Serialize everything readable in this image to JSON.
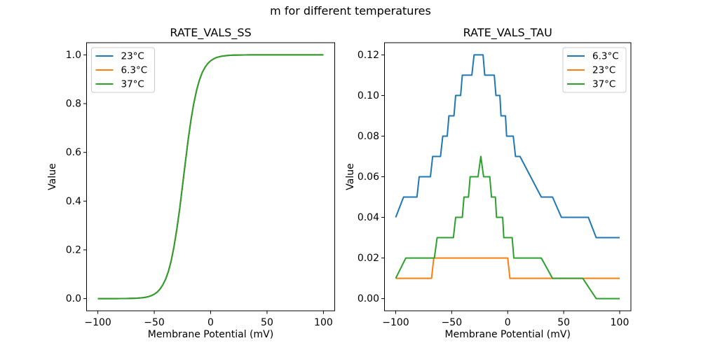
{
  "figure": {
    "suptitle": "m for different temperatures",
    "background": "#ffffff",
    "text_color": "#000000"
  },
  "palette": {
    "blue": "#1f77b4",
    "orange": "#ff7f0e",
    "green": "#2ca02c",
    "legend_border": "#cccccc",
    "axes_color": "#000000"
  },
  "chart_data": [
    {
      "type": "line",
      "title": "RATE_VALS_SS",
      "xlabel": "Membrane Potential (mV)",
      "ylabel": "Value",
      "xlim": [
        -100,
        100
      ],
      "ylim": [
        0,
        1
      ],
      "grid": false,
      "xticks": [
        {
          "v": -100,
          "label": "−100"
        },
        {
          "v": -50,
          "label": "−50"
        },
        {
          "v": 0,
          "label": "0"
        },
        {
          "v": 50,
          "label": "50"
        },
        {
          "v": 100,
          "label": "100"
        }
      ],
      "yticks": [
        {
          "v": 0.0,
          "label": "0.0"
        },
        {
          "v": 0.2,
          "label": "0.2"
        },
        {
          "v": 0.4,
          "label": "0.4"
        },
        {
          "v": 0.6,
          "label": "0.6"
        },
        {
          "v": 0.8,
          "label": "0.8"
        },
        {
          "v": 1.0,
          "label": "1.0"
        }
      ],
      "legend": {
        "loc": "upper left",
        "entries": [
          {
            "label": "23°C",
            "color": "#1f77b4"
          },
          {
            "label": "6.3°C",
            "color": "#ff7f0e"
          },
          {
            "label": "37°C",
            "color": "#2ca02c"
          }
        ]
      },
      "x": [
        -100,
        -95,
        -90,
        -85,
        -80,
        -75,
        -70,
        -65,
        -60,
        -57.5,
        -55,
        -52.5,
        -50,
        -47.5,
        -45,
        -42.5,
        -40,
        -37.5,
        -35,
        -32.5,
        -30,
        -27.5,
        -25,
        -22.5,
        -20,
        -17.5,
        -15,
        -12.5,
        -10,
        -7.5,
        -5,
        -2.5,
        0,
        2.5,
        5,
        7.5,
        10,
        15,
        20,
        25,
        30,
        35,
        40,
        50,
        60,
        70,
        80,
        90,
        100
      ],
      "series": [
        {
          "name": "23°C",
          "color": "#1f77b4",
          "values": [
            0,
            0,
            0,
            0.0001,
            0.0002,
            0.0004,
            0.0009,
            0.0018,
            0.0039,
            0.0057,
            0.0084,
            0.0123,
            0.018,
            0.0263,
            0.0384,
            0.0556,
            0.0786,
            0.111,
            0.155,
            0.213,
            0.284,
            0.368,
            0.462,
            0.557,
            0.649,
            0.731,
            0.8,
            0.854,
            0.896,
            0.927,
            0.949,
            0.965,
            0.976,
            0.983,
            0.989,
            0.992,
            0.995,
            0.9975,
            0.9989,
            0.9995,
            0.9998,
            0.9999,
            1,
            1,
            1,
            1,
            1,
            1,
            1
          ]
        },
        {
          "name": "6.3°C",
          "color": "#ff7f0e",
          "values": [
            0,
            0,
            0,
            0.0001,
            0.0002,
            0.0004,
            0.0009,
            0.0018,
            0.0039,
            0.0057,
            0.0084,
            0.0123,
            0.018,
            0.0263,
            0.0384,
            0.0556,
            0.0786,
            0.111,
            0.155,
            0.213,
            0.284,
            0.368,
            0.462,
            0.557,
            0.649,
            0.731,
            0.8,
            0.854,
            0.896,
            0.927,
            0.949,
            0.965,
            0.976,
            0.983,
            0.989,
            0.992,
            0.995,
            0.9975,
            0.9989,
            0.9995,
            0.9998,
            0.9999,
            1,
            1,
            1,
            1,
            1,
            1,
            1
          ]
        },
        {
          "name": "37°C",
          "color": "#2ca02c",
          "values": [
            0,
            0,
            0,
            0.0001,
            0.0002,
            0.0004,
            0.0009,
            0.0018,
            0.0039,
            0.0057,
            0.0084,
            0.0123,
            0.018,
            0.0263,
            0.0384,
            0.0556,
            0.0786,
            0.111,
            0.155,
            0.213,
            0.284,
            0.368,
            0.462,
            0.557,
            0.649,
            0.731,
            0.8,
            0.854,
            0.896,
            0.927,
            0.949,
            0.965,
            0.976,
            0.983,
            0.989,
            0.992,
            0.995,
            0.9975,
            0.9989,
            0.9995,
            0.9998,
            0.9999,
            1,
            1,
            1,
            1,
            1,
            1,
            1
          ]
        }
      ]
    },
    {
      "type": "line",
      "title": "RATE_VALS_TAU",
      "xlabel": "Membrane Potential (mV)",
      "ylabel": "Value",
      "xlim": [
        -100,
        100
      ],
      "ylim": [
        0,
        0.12
      ],
      "grid": false,
      "xticks": [
        {
          "v": -100,
          "label": "−100"
        },
        {
          "v": -50,
          "label": "−50"
        },
        {
          "v": 0,
          "label": "0"
        },
        {
          "v": 50,
          "label": "50"
        },
        {
          "v": 100,
          "label": "100"
        }
      ],
      "yticks": [
        {
          "v": 0.0,
          "label": "0.00"
        },
        {
          "v": 0.02,
          "label": "0.02"
        },
        {
          "v": 0.04,
          "label": "0.04"
        },
        {
          "v": 0.06,
          "label": "0.06"
        },
        {
          "v": 0.08,
          "label": "0.08"
        },
        {
          "v": 0.1,
          "label": "0.10"
        },
        {
          "v": 0.12,
          "label": "0.12"
        }
      ],
      "legend": {
        "loc": "upper right",
        "entries": [
          {
            "label": "6.3°C",
            "color": "#1f77b4"
          },
          {
            "label": "23°C",
            "color": "#ff7f0e"
          },
          {
            "label": "37°C",
            "color": "#2ca02c"
          }
        ]
      },
      "series": [
        {
          "name": "6.3°C",
          "color": "#1f77b4",
          "points": [
            [
              -100,
              0.04
            ],
            [
              -93,
              0.05
            ],
            [
              -81,
              0.05
            ],
            [
              -79,
              0.06
            ],
            [
              -69,
              0.06
            ],
            [
              -67,
              0.07
            ],
            [
              -60,
              0.07
            ],
            [
              -58,
              0.08
            ],
            [
              -54,
              0.08
            ],
            [
              -52.5,
              0.09
            ],
            [
              -48,
              0.09
            ],
            [
              -46.5,
              0.1
            ],
            [
              -42,
              0.1
            ],
            [
              -40.5,
              0.11
            ],
            [
              -32,
              0.11
            ],
            [
              -30,
              0.12
            ],
            [
              -22,
              0.12
            ],
            [
              -20.5,
              0.11
            ],
            [
              -12,
              0.11
            ],
            [
              -10.5,
              0.1
            ],
            [
              -7,
              0.1
            ],
            [
              -6,
              0.09
            ],
            [
              -2,
              0.09
            ],
            [
              -1,
              0.08
            ],
            [
              5,
              0.08
            ],
            [
              7,
              0.07
            ],
            [
              11,
              0.07
            ],
            [
              20.5,
              0.06
            ],
            [
              30,
              0.05
            ],
            [
              40,
              0.05
            ],
            [
              48,
              0.04
            ],
            [
              72,
              0.04
            ],
            [
              79,
              0.03
            ],
            [
              100,
              0.03
            ]
          ]
        },
        {
          "name": "23°C",
          "color": "#ff7f0e",
          "points": [
            [
              -100,
              0.01
            ],
            [
              -68,
              0.01
            ],
            [
              -66,
              0.02
            ],
            [
              0,
              0.02
            ],
            [
              2,
              0.01
            ],
            [
              100,
              0.01
            ]
          ]
        },
        {
          "name": "37°C",
          "color": "#2ca02c",
          "points": [
            [
              -100,
              0.01
            ],
            [
              -91,
              0.02
            ],
            [
              -65.5,
              0.02
            ],
            [
              -63,
              0.03
            ],
            [
              -48.5,
              0.03
            ],
            [
              -46.5,
              0.04
            ],
            [
              -40.5,
              0.04
            ],
            [
              -39,
              0.05
            ],
            [
              -35,
              0.05
            ],
            [
              -33.5,
              0.06
            ],
            [
              -26.5,
              0.06
            ],
            [
              -24,
              0.07
            ],
            [
              -21.5,
              0.06
            ],
            [
              -16,
              0.06
            ],
            [
              -14.5,
              0.05
            ],
            [
              -11,
              0.05
            ],
            [
              -10,
              0.04
            ],
            [
              -4.5,
              0.04
            ],
            [
              -3.5,
              0.03
            ],
            [
              4,
              0.03
            ],
            [
              5.5,
              0.02
            ],
            [
              30,
              0.02
            ],
            [
              40,
              0.01
            ],
            [
              67,
              0.01
            ],
            [
              79,
              0
            ],
            [
              100,
              0
            ]
          ]
        }
      ]
    }
  ]
}
